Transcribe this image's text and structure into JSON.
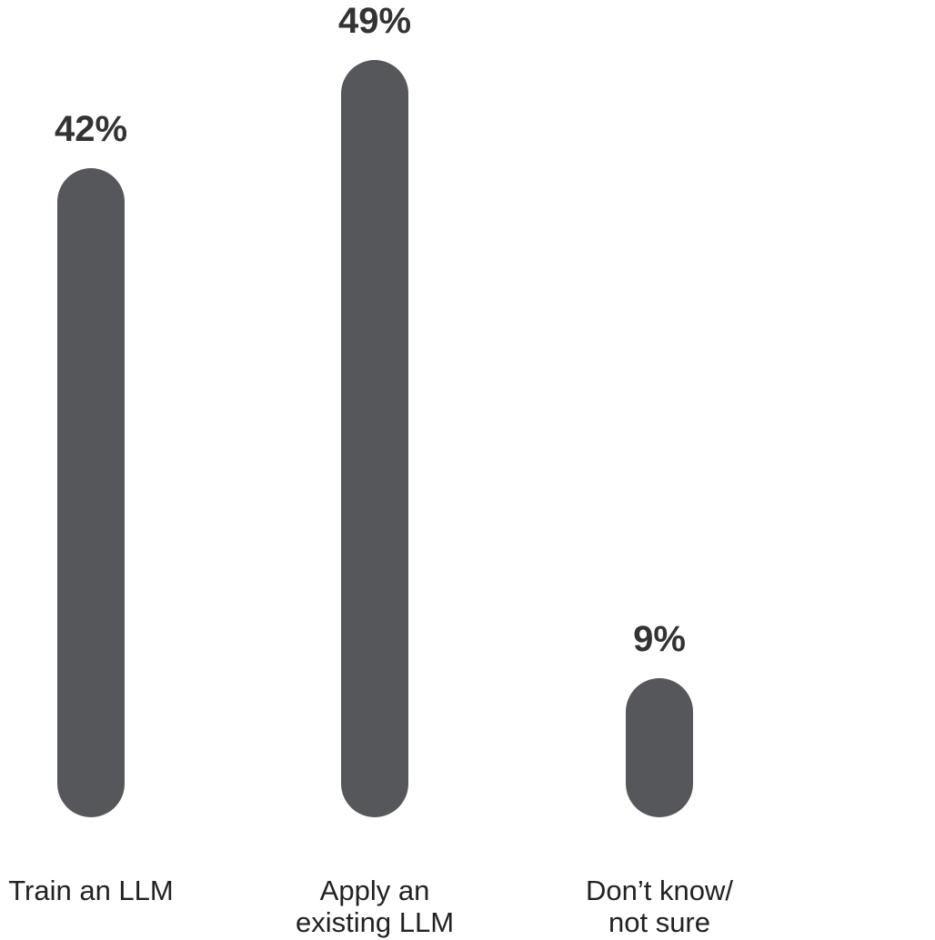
{
  "chart_data": {
    "type": "bar",
    "categories": [
      [
        "Train an LLM"
      ],
      [
        "Apply an",
        "existing LLM"
      ],
      [
        "Don’t know/",
        "not sure"
      ]
    ],
    "values": [
      42,
      49,
      9
    ],
    "value_labels": [
      "42%",
      "49%",
      "9%"
    ],
    "ylim": [
      0,
      49
    ],
    "grid": false,
    "bar_color": "#55575a",
    "title": "",
    "xlabel": "",
    "ylabel": ""
  }
}
